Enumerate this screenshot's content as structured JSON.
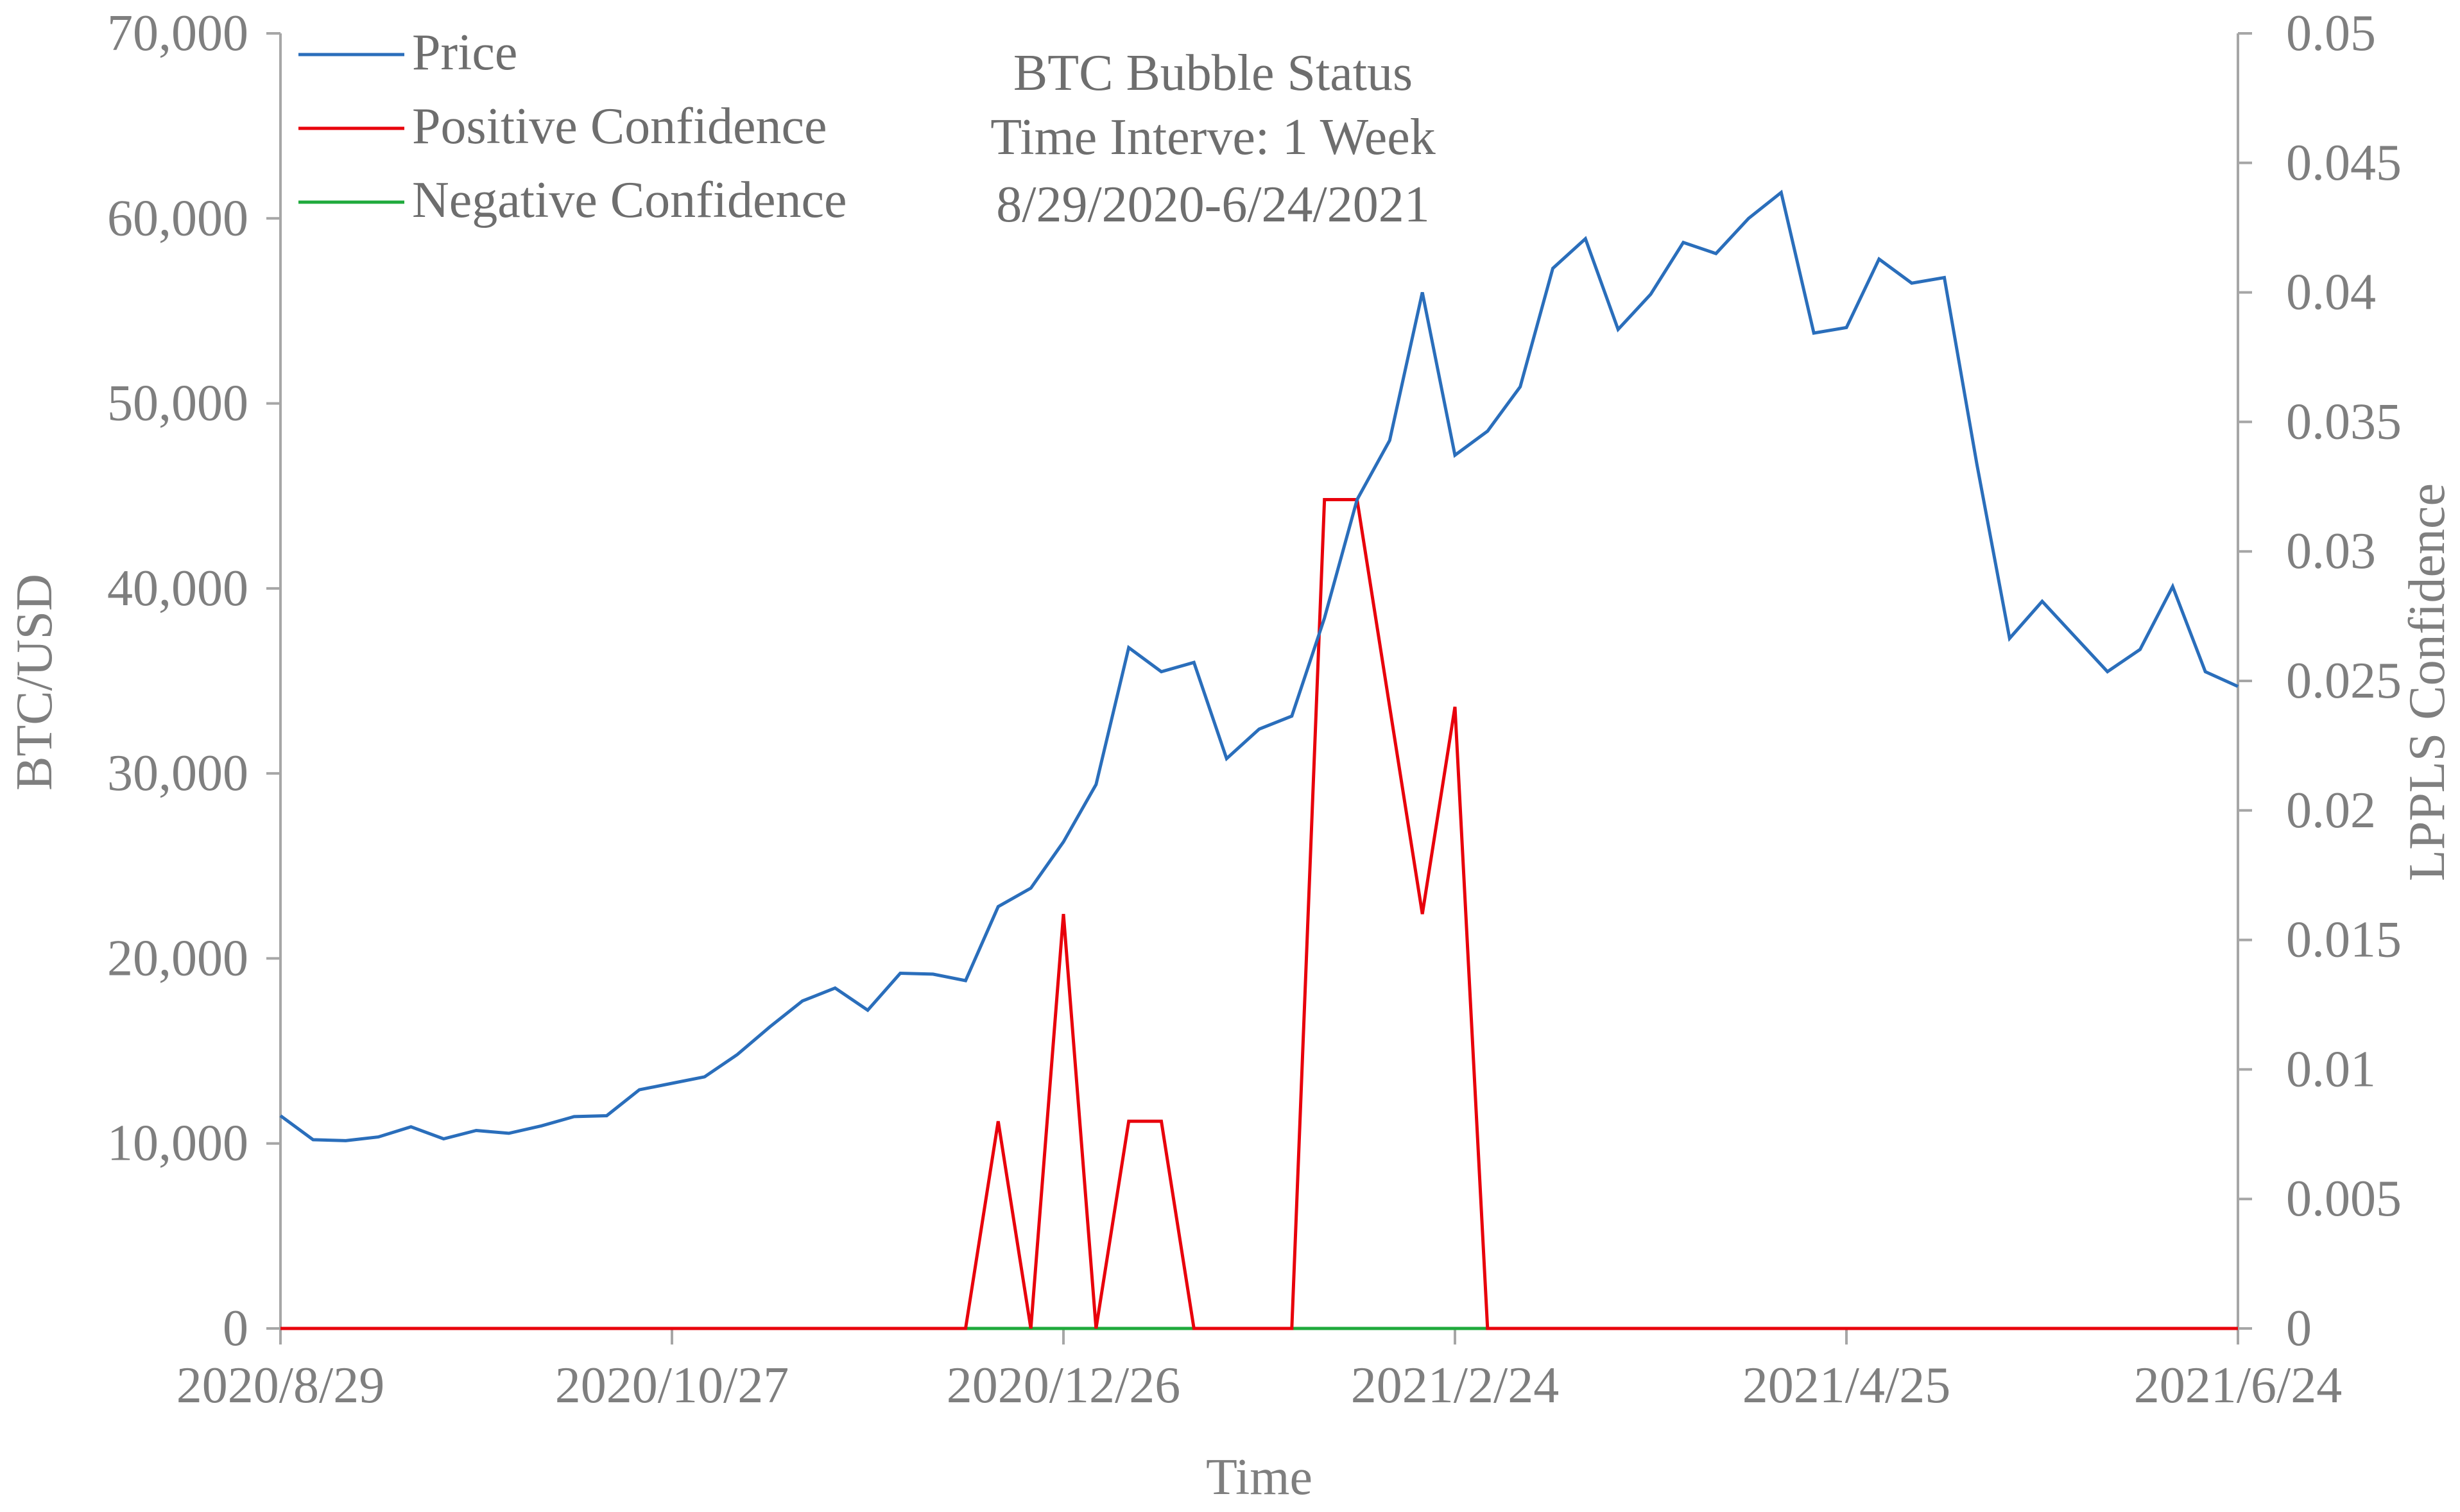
{
  "chart_data": {
    "type": "line",
    "title_lines": [
      "BTC Bubble Status",
      "Time Interve: 1 Week",
      "8/29/2020-6/24/2021"
    ],
    "xlabel": "Time",
    "ylabel": "BTC/USD",
    "y2label": "LPPLS Confidence",
    "x_tick_labels": [
      "2020/8/29",
      "2020/10/27",
      "2020/12/26",
      "2021/2/24",
      "2021/4/25",
      "2021/6/24"
    ],
    "y_tick_labels": [
      "0",
      "10,000",
      "20,000",
      "30,000",
      "40,000",
      "50,000",
      "60,000",
      "70,000"
    ],
    "y2_tick_labels": [
      "0",
      "0.005",
      "0.01",
      "0.015",
      "0.02",
      "0.025",
      "0.03",
      "0.035",
      "0.04",
      "0.045",
      "0.05"
    ],
    "ylim": [
      0,
      70000
    ],
    "y2lim": [
      0,
      0.05
    ],
    "x_step_label": "weeks",
    "legend_position": "top-left",
    "grid": false,
    "colors": {
      "price": "#2a6ebb",
      "positive": "#e8000b",
      "negative": "#1faa3c",
      "axis": "#a6a6a6"
    },
    "series": [
      {
        "name": "Price",
        "axis": "left",
        "values": [
          11500,
          10200,
          10150,
          10350,
          10900,
          10250,
          10700,
          10550,
          10950,
          11450,
          11500,
          12900,
          13250,
          13600,
          14800,
          16300,
          17700,
          18400,
          17200,
          19200,
          19150,
          18800,
          22800,
          23800,
          26300,
          29400,
          36800,
          35500,
          36000,
          30800,
          32400,
          33100,
          38400,
          44800,
          48000,
          56000,
          47200,
          48500,
          50900,
          57300,
          58900,
          54000,
          55900,
          58700,
          58100,
          60000,
          61400,
          53800,
          54100,
          57800,
          56500,
          56800,
          46700,
          37300,
          39300,
          37400,
          35500,
          36700,
          40100,
          35500,
          34700
        ]
      },
      {
        "name": "Positive Confidence",
        "axis": "right",
        "values": [
          0,
          0,
          0,
          0,
          0,
          0,
          0,
          0,
          0,
          0,
          0,
          0,
          0,
          0,
          0,
          0,
          0,
          0,
          0,
          0,
          0,
          0,
          0.008,
          0,
          0.016,
          0,
          0.008,
          0.008,
          0,
          0,
          0,
          0,
          0.032,
          0.032,
          0.024,
          0.016,
          0.024,
          0,
          0,
          0,
          0,
          0,
          0,
          0,
          0,
          0,
          0,
          0,
          0,
          0,
          0,
          0,
          0,
          0,
          0,
          0,
          0,
          0,
          0,
          0,
          0
        ]
      },
      {
        "name": "Negative Confidence",
        "axis": "right",
        "values": [
          0,
          0,
          0,
          0,
          0,
          0,
          0,
          0,
          0,
          0,
          0,
          0,
          0,
          0,
          0,
          0,
          0,
          0,
          0,
          0,
          0,
          0,
          0,
          0,
          0,
          0,
          0,
          0,
          0,
          0,
          0,
          0,
          0,
          0,
          0,
          0,
          0,
          0,
          0,
          0,
          0,
          0,
          0,
          0,
          0,
          0,
          0,
          0,
          0,
          0,
          0,
          0,
          0,
          0,
          0,
          0,
          0,
          0,
          0,
          0,
          0
        ]
      }
    ]
  }
}
